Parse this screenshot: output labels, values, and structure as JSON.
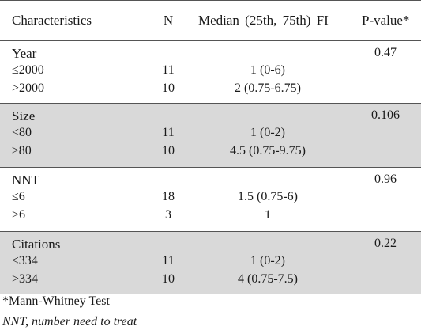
{
  "table": {
    "headers": {
      "characteristics": "Characteristics",
      "n": "N",
      "median": "Median (25th, 75th) FI",
      "pvalue": "P-value*"
    },
    "groups": [
      {
        "name": "Year",
        "pvalue": "0.47",
        "rows": [
          {
            "label": "≤2000",
            "n": "11",
            "median": "1 (0-6)"
          },
          {
            "label": ">2000",
            "n": "10",
            "median": "2 (0.75-6.75)"
          }
        ]
      },
      {
        "name": "Size",
        "pvalue": "0.106",
        "rows": [
          {
            "label": "<80",
            "n": "11",
            "median": "1 (0-2)"
          },
          {
            "label": "≥80",
            "n": "10",
            "median": "4.5 (0.75-9.75)"
          }
        ]
      },
      {
        "name": "NNT",
        "pvalue": "0.96",
        "rows": [
          {
            "label": "≤6",
            "n": "18",
            "median": "1.5 (0.75-6)"
          },
          {
            "label": ">6",
            "n": "3",
            "median": "1"
          }
        ]
      },
      {
        "name": "Citations",
        "pvalue": "0.22",
        "rows": [
          {
            "label": "≤334",
            "n": "11",
            "median": "1 (0-2)"
          },
          {
            "label": ">334",
            "n": "10",
            "median": "4 (0.75-7.5)"
          }
        ]
      }
    ]
  },
  "footnotes": {
    "test": "*Mann-Whitney Test",
    "abbrev": "NNT, number need to treat"
  }
}
